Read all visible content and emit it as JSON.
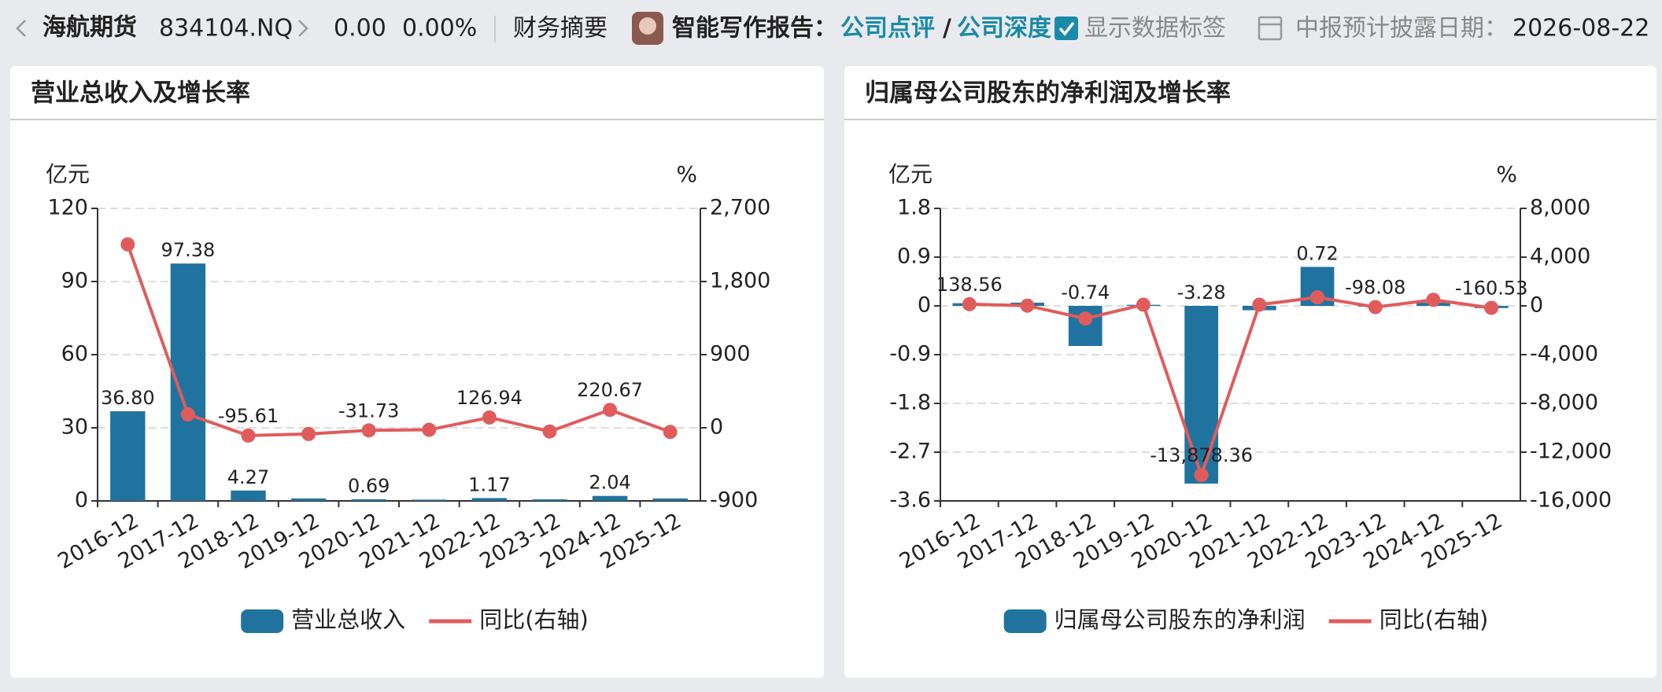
{
  "header": {
    "name": "海航期货",
    "code": "834104.NQ",
    "price": "0.00",
    "change": "0.00%",
    "summary": "财务摘要",
    "report_label": "智能写作报告：",
    "link1": "公司点评",
    "separator": "/",
    "link2": "公司深度",
    "show_labels": "显示数据标签",
    "date_label": "中报预计披露日期：",
    "date": "2026-08-22"
  },
  "chart_data": [
    {
      "type": "bar",
      "title": "营业总收入及增长率",
      "y_unit": "亿元",
      "y2_unit": "%",
      "categories": [
        "2016-12",
        "2017-12",
        "2018-12",
        "2019-12",
        "2020-12",
        "2021-12",
        "2022-12",
        "2023-12",
        "2024-12",
        "2025-12"
      ],
      "series": [
        {
          "name": "营业总收入",
          "type": "bar",
          "color": "#21739f",
          "values": [
            36.8,
            97.38,
            4.27,
            1.01,
            0.69,
            0.52,
            1.17,
            0.64,
            2.04,
            1.0
          ],
          "value_labels": [
            "36.80",
            "97.38",
            "4.27",
            null,
            "0.69",
            null,
            "1.17",
            null,
            "2.04",
            null
          ]
        },
        {
          "name": "同比(右轴)",
          "type": "line",
          "axis": "y2",
          "color": "#e05c5c",
          "values": [
            2257,
            164.6,
            -95.61,
            -76.3,
            -31.73,
            -24.6,
            126.94,
            -45.6,
            220.67,
            -51.0
          ],
          "value_labels": [
            null,
            null,
            "-95.61",
            null,
            "-31.73",
            null,
            "126.94",
            null,
            "220.67",
            null
          ]
        }
      ],
      "ylim": [
        0,
        120
      ],
      "yticks": [
        0,
        30,
        60,
        90,
        120
      ],
      "y2lim": [
        -900,
        2700
      ],
      "y2ticks": [
        -900,
        0,
        900,
        {
          "value": 1800,
          "label": "1,800"
        },
        {
          "value": 2700,
          "label": "2,700"
        }
      ],
      "grid": true
    },
    {
      "type": "bar",
      "title": "归属母公司股东的净利润及增长率",
      "y_unit": "亿元",
      "y2_unit": "%",
      "categories": [
        "2016-12",
        "2017-12",
        "2018-12",
        "2019-12",
        "2020-12",
        "2021-12",
        "2022-12",
        "2023-12",
        "2024-12",
        "2025-12"
      ],
      "series": [
        {
          "name": "归属母公司股东的净利润",
          "type": "bar",
          "color": "#21739f",
          "values": [
            0.05,
            0.06,
            -0.74,
            0.02,
            -3.28,
            -0.08,
            0.72,
            -0.01,
            0.06,
            -0.04
          ],
          "value_labels": [
            null,
            null,
            "-0.74",
            null,
            "-3.28",
            null,
            "0.72",
            null,
            null,
            null
          ]
        },
        {
          "name": "同比(右轴)",
          "type": "line",
          "axis": "y2",
          "color": "#e05c5c",
          "values": [
            138.56,
            20,
            -1040,
            100,
            -13878.36,
            97,
            700,
            -98.08,
            500,
            -160.53
          ],
          "value_labels": [
            "138.56",
            null,
            null,
            null,
            "-13,878.36",
            null,
            null,
            "-98.08",
            null,
            "-160.53"
          ]
        }
      ],
      "ylim": [
        -3.6,
        1.8
      ],
      "yticks": [
        -3.6,
        -2.7,
        -1.8,
        -0.9,
        0,
        0.9,
        1.8
      ],
      "y2lim": [
        -16000,
        8000
      ],
      "y2ticks": [
        {
          "value": -16000,
          "label": "-16,000"
        },
        {
          "value": -12000,
          "label": "-12,000"
        },
        {
          "value": -8000,
          "label": "-8,000"
        },
        {
          "value": -4000,
          "label": "-4,000"
        },
        0,
        {
          "value": 4000,
          "label": "4,000"
        },
        {
          "value": 8000,
          "label": "8,000"
        }
      ],
      "grid": true
    }
  ]
}
